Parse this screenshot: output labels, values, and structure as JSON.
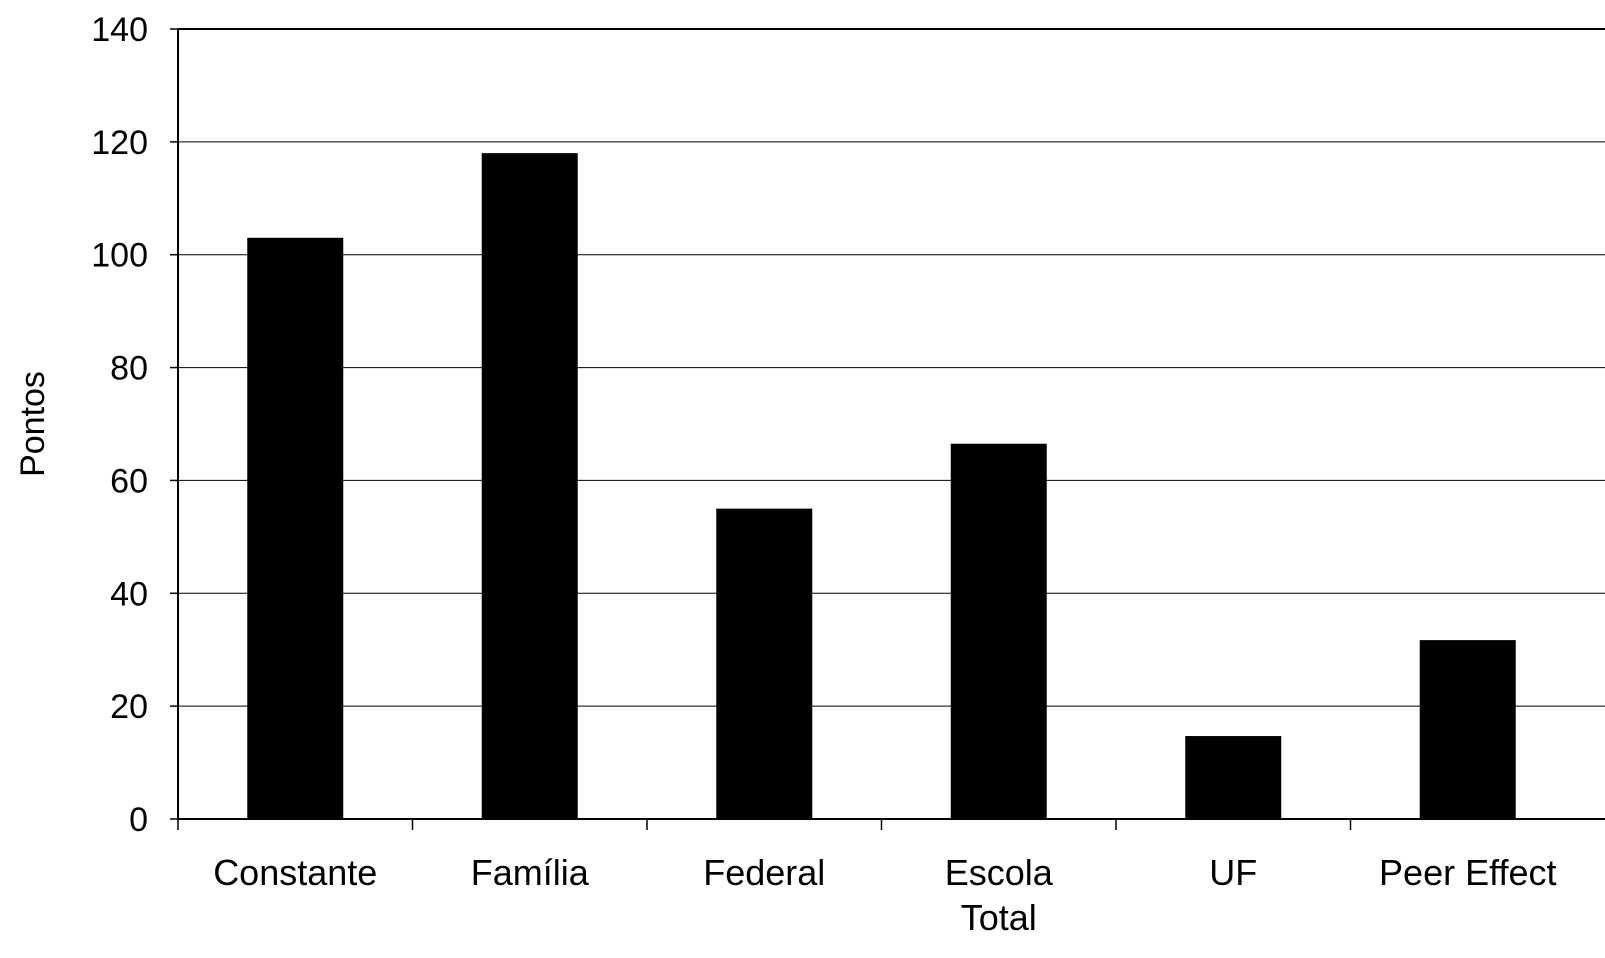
{
  "chart_data": {
    "type": "bar",
    "categories": [
      "Constante",
      "Família",
      "Federal",
      "Escola\nTotal",
      "UF",
      "Peer Effect"
    ],
    "values": [
      103,
      118,
      55,
      66.5,
      14.7,
      31.7
    ],
    "ylabel": "Pontos",
    "xlabel": "",
    "ylim": [
      0,
      140
    ],
    "yticks": [
      0,
      20,
      40,
      60,
      80,
      100,
      120,
      140
    ],
    "grid": true,
    "legend": "none",
    "colors": {
      "bar": "#000000",
      "grid": "#000000",
      "axis": "#000000",
      "background": "#ffffff"
    }
  }
}
